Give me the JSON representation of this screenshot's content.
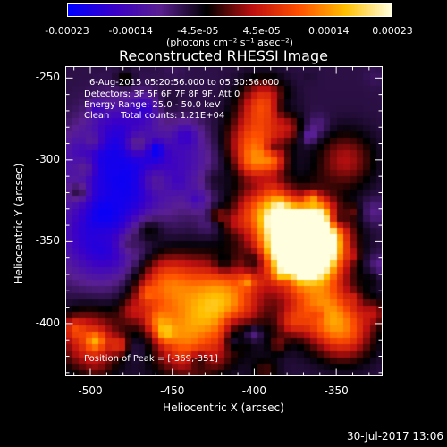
{
  "colorbar": {
    "ticks": [
      "-0.00023",
      "-0.00014",
      "-4.5e-05",
      "4.5e-05",
      "0.00014",
      "0.00023"
    ],
    "unit": "(photons cm⁻² s⁻¹ asec⁻²)",
    "range": [
      -0.00023,
      0.00023
    ]
  },
  "chart_data": {
    "type": "heatmap",
    "title": "Reconstructed RHESSI Image",
    "xlabel": "Heliocentric X (arcsec)",
    "ylabel": "Heliocentric Y (arcsec)",
    "xlim": [
      -515,
      -322
    ],
    "ylim": [
      -432,
      -243
    ],
    "x_ticks": [
      "-500",
      "-450",
      "-400",
      "-350"
    ],
    "y_ticks": [
      "-250",
      "-300",
      "-350",
      "-400"
    ],
    "x_tick_values": [
      -500,
      -450,
      -400,
      -350
    ],
    "y_tick_values": [
      -250,
      -300,
      -350,
      -400
    ],
    "annotations": [
      "6-Aug-2015 05:20:56.000 to 05:30:56.000",
      "Detectors: 3F 5F 6F 7F 8F 9F, Att 0",
      "Energy Range: 25.0 - 50.0 keV",
      "Clean    Total counts: 1.21E+04",
      "Position of Peak = [-369,-351]"
    ],
    "peak": {
      "x": -369,
      "y": -351
    },
    "colormap": [
      "#0000ff",
      "#3a00c8",
      "#5a2090",
      "#000000",
      "#c01010",
      "#ff5000",
      "#ffc000",
      "#ffffe0"
    ],
    "grid": false
  },
  "footer": {
    "date": "30-Jul-2017 13:06"
  }
}
